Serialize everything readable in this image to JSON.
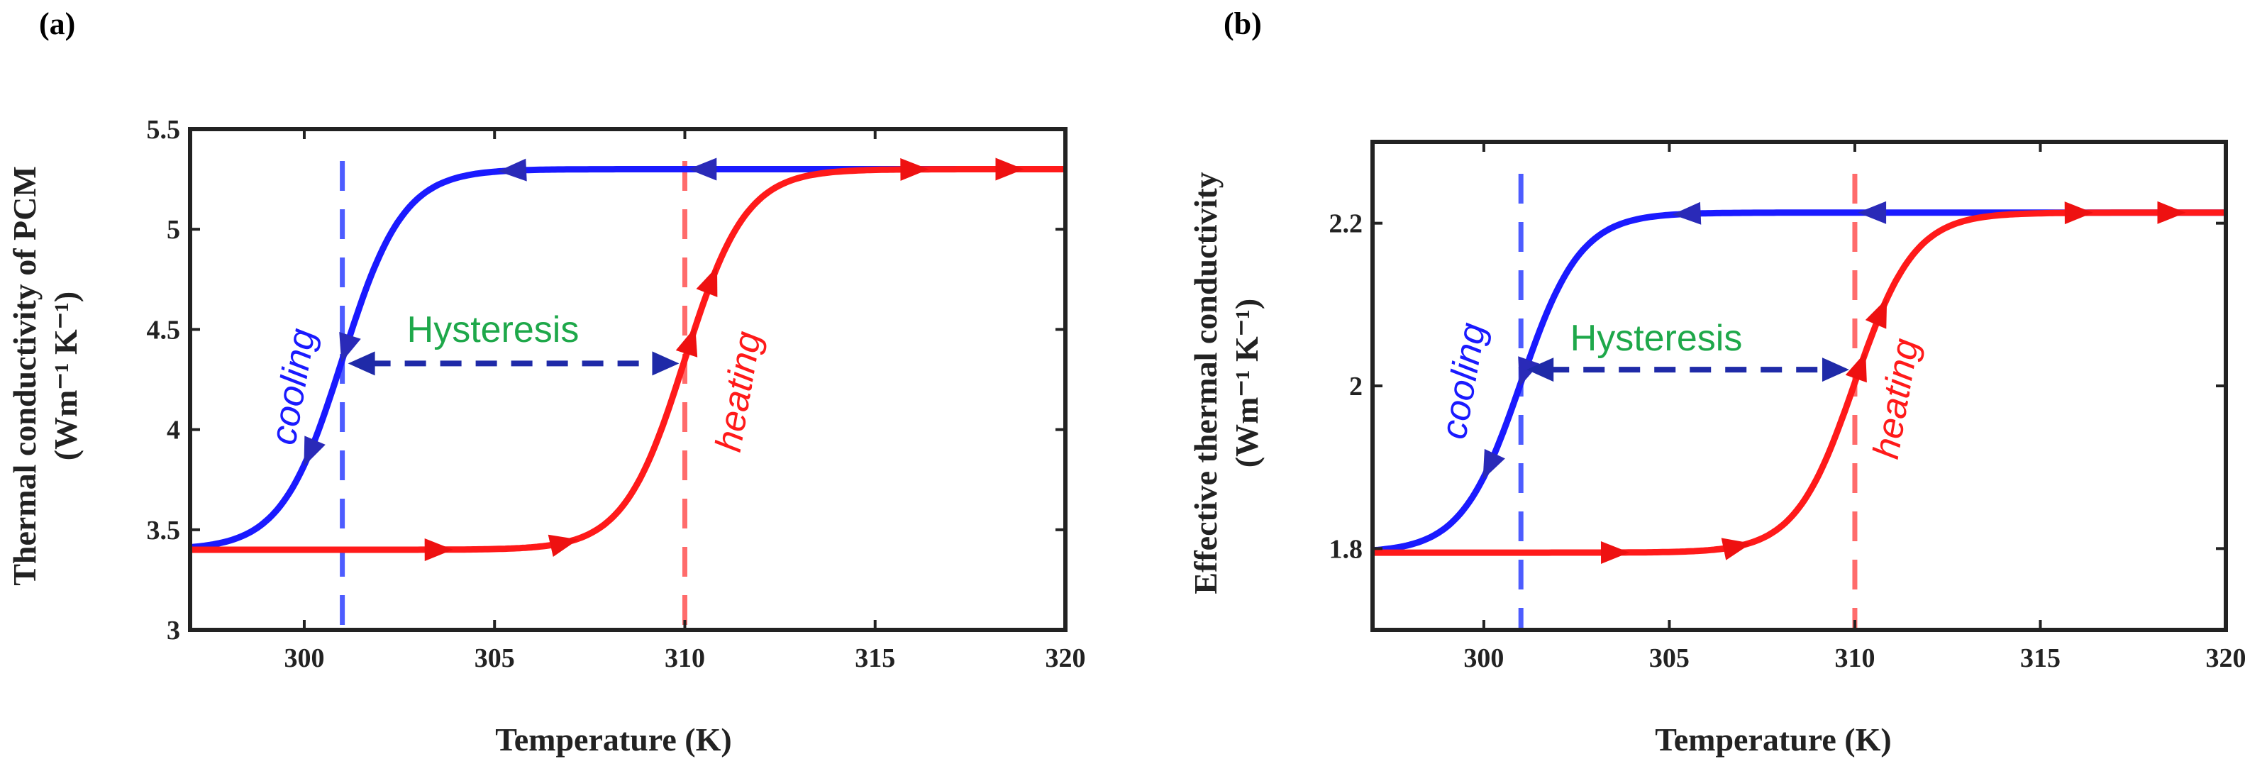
{
  "chart_data": [
    {
      "type": "line",
      "panel_label": "(a)",
      "xlabel": "Temperature (K)",
      "ylabel_line1": "Thermal conductivity of PCM",
      "ylabel_line2": "(Wm⁻¹ K⁻¹)",
      "xlim": [
        297,
        320
      ],
      "ylim": [
        3,
        5.5
      ],
      "xticks": [
        300,
        305,
        310,
        315,
        320
      ],
      "yticks": [
        3,
        3.5,
        4,
        4.5,
        5,
        5.5
      ],
      "ytick_labels": [
        "3",
        "3.5",
        "4",
        "4.5",
        "5",
        "5.5"
      ],
      "series": [
        {
          "name": "cooling",
          "color": "#1a1aff",
          "low": 3.4,
          "high": 5.3,
          "transition": 301,
          "width": 0.8,
          "direction": "decreasing_T"
        },
        {
          "name": "heating",
          "color": "#ff1a1a",
          "low": 3.4,
          "high": 5.3,
          "transition": 310,
          "width": 0.8,
          "direction": "increasing_T"
        }
      ],
      "vlines": [
        {
          "x": 301,
          "color": "#4d5cff"
        },
        {
          "x": 310,
          "color": "#ff6b6b"
        }
      ],
      "hysteresis": {
        "label": "Hysteresis",
        "x1": 301,
        "x2": 310,
        "y": 4.33
      },
      "annotations": {
        "cooling": "cooling",
        "heating": "heating"
      }
    },
    {
      "type": "line",
      "panel_label": "(b)",
      "xlabel": "Temperature (K)",
      "ylabel_line1": "Effective thermal conductivity",
      "ylabel_line2": "(Wm⁻¹ K⁻¹)",
      "xlim": [
        297,
        320
      ],
      "ylim": [
        1.7,
        2.3
      ],
      "xticks": [
        300,
        305,
        310,
        315,
        320
      ],
      "yticks": [
        1.8,
        2,
        2.2
      ],
      "ytick_labels": [
        "1.8",
        "2",
        "2.2"
      ],
      "series": [
        {
          "name": "cooling",
          "color": "#1a1aff",
          "low": 1.795,
          "high": 2.213,
          "transition": 301,
          "width": 0.8,
          "direction": "decreasing_T"
        },
        {
          "name": "heating",
          "color": "#ff1a1a",
          "low": 1.795,
          "high": 2.213,
          "transition": 310,
          "width": 0.8,
          "direction": "increasing_T"
        }
      ],
      "vlines": [
        {
          "x": 301,
          "color": "#4d5cff"
        },
        {
          "x": 310,
          "color": "#ff6b6b"
        }
      ],
      "hysteresis": {
        "label": "Hysteresis",
        "x1": 301,
        "x2": 310,
        "y": 2.02
      },
      "annotations": {
        "cooling": "cooling",
        "heating": "heating"
      }
    }
  ]
}
